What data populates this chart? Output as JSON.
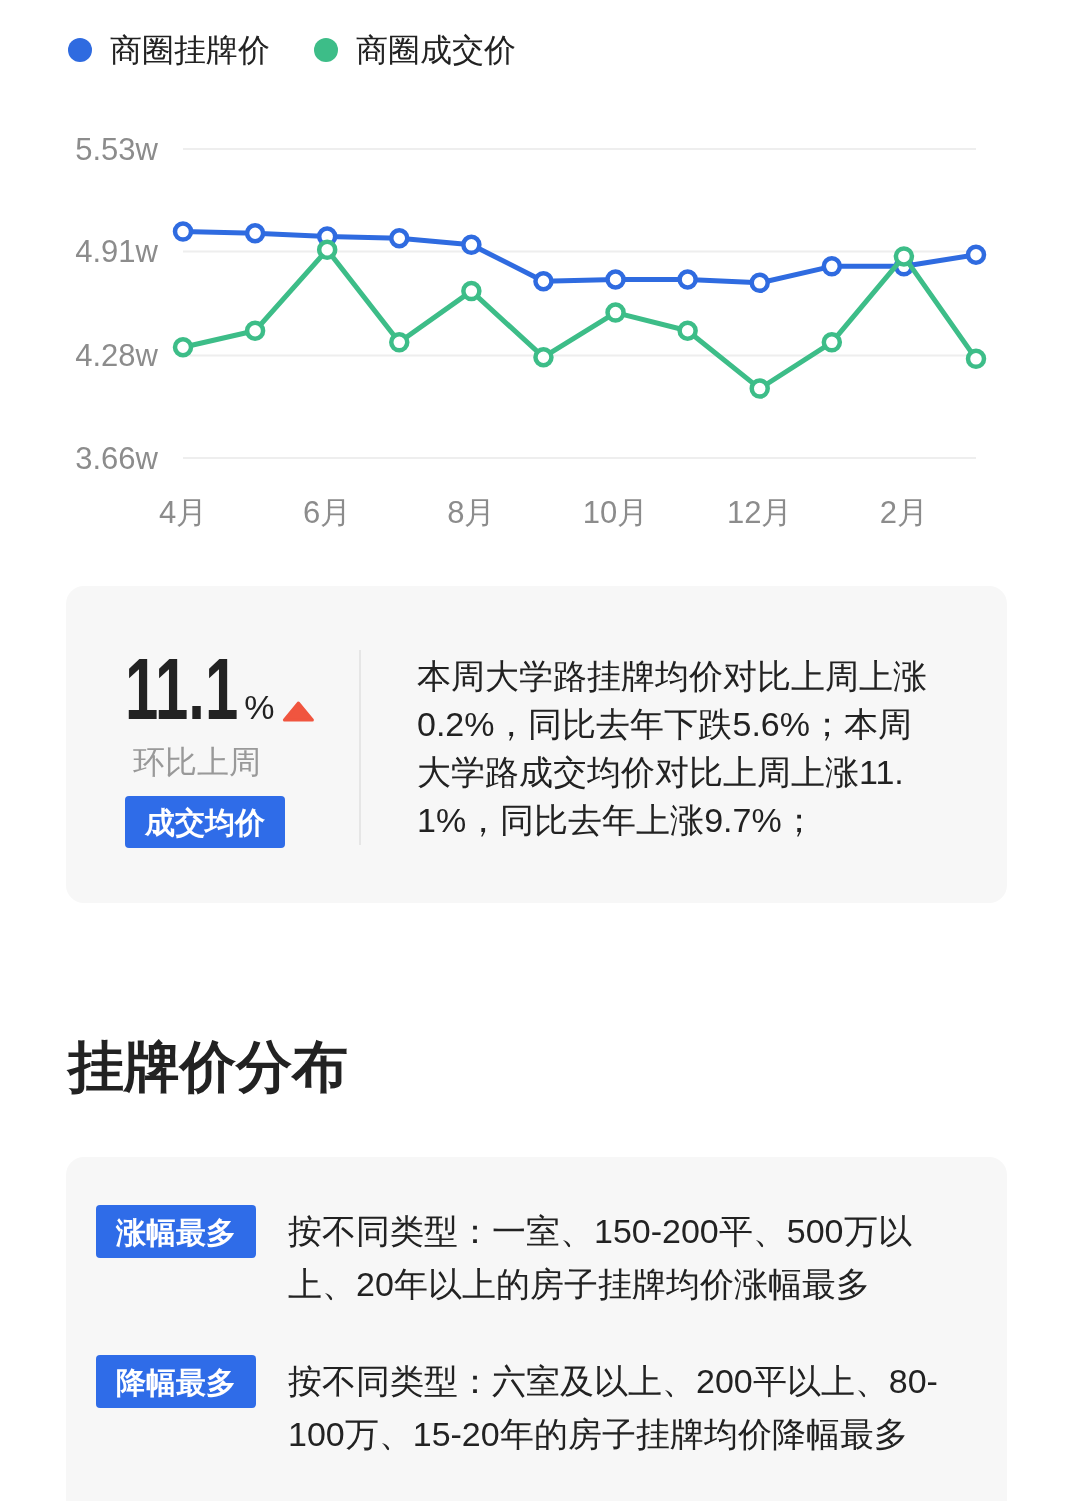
{
  "chart_data": [
    {
      "type": "line",
      "categories": [
        "4月",
        null,
        "6月",
        null,
        "8月",
        null,
        "10月",
        null,
        "12月",
        null,
        "2月",
        null
      ],
      "series": [
        {
          "name": "商圈挂牌价",
          "color": "#2f6be0",
          "values": [
            5.03,
            5.02,
            5.0,
            4.99,
            4.95,
            4.73,
            4.74,
            4.74,
            4.72,
            4.82,
            4.82,
            4.89
          ]
        },
        {
          "name": "商圈成交价",
          "color": "#3dbd88",
          "values": [
            4.33,
            4.43,
            4.92,
            4.36,
            4.67,
            4.27,
            4.54,
            4.43,
            4.08,
            4.36,
            4.88,
            4.26
          ]
        }
      ],
      "ylim": [
        3.66,
        5.53
      ],
      "yticks": [
        {
          "value": 3.66,
          "label": "3.66w"
        },
        {
          "value": 4.28,
          "label": "4.28w"
        },
        {
          "value": 4.91,
          "label": "4.91w"
        },
        {
          "value": 5.53,
          "label": "5.53w"
        }
      ],
      "grid": "y",
      "legend": "top left",
      "marker": "circle"
    },
    {
      "type": "other",
      "title": "11.1%",
      "subtitle": "环比上周",
      "annotations": [
        "成交均价",
        "本周大学路挂牌均价对比上周上涨0.2%，同比去年下跌5.6%；本周大学路成交均价对比上周上涨11.1%，同比去年上涨9.7%；"
      ]
    },
    {
      "type": "other",
      "title": "挂牌价分布",
      "annotations": [
        "涨幅最多",
        "按不同类型：一室、150-200平、500万以上、20年以上的房子挂牌均价涨幅最多",
        "降幅最多",
        "按不同类型：六室及以上、200平以上、80-100万、15-20年的房子挂牌均价降幅最多"
      ]
    }
  ]
}
